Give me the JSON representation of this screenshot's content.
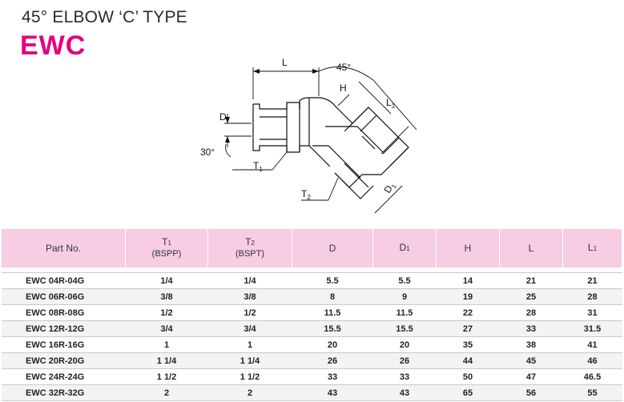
{
  "header": {
    "title": "45° ELBOW ‘C’ TYPE",
    "code": "EWC"
  },
  "drawing": {
    "labels": {
      "L": "L",
      "angle": "45°",
      "H": "H",
      "L1": "L",
      "L1_sub": "1",
      "D": "D",
      "angle30": "30°",
      "T1": "T",
      "T1_sub": "1",
      "T2": "T",
      "T2_sub": "2",
      "D1": "D",
      "D1_sub": "1"
    }
  },
  "table": {
    "headers": {
      "part_no": "Part No.",
      "t1": "T",
      "t1_sub": "1",
      "t1_note": "(BSPP)",
      "t2": "T",
      "t2_sub": "2",
      "t2_note": "(BSPT)",
      "d": "D",
      "d1": "D",
      "d1_sub": "1",
      "h": "H",
      "l": "L",
      "l1": "L",
      "l1_sub": "1"
    },
    "rows": [
      {
        "part": "EWC 04R-04G",
        "t1": "1/4",
        "t2": "1/4",
        "d": "5.5",
        "d1": "5.5",
        "h": "14",
        "l": "21",
        "l1": "21"
      },
      {
        "part": "EWC 06R-06G",
        "t1": "3/8",
        "t2": "3/8",
        "d": "8",
        "d1": "9",
        "h": "19",
        "l": "25",
        "l1": "28"
      },
      {
        "part": "EWC 08R-08G",
        "t1": "1/2",
        "t2": "1/2",
        "d": "11.5",
        "d1": "11.5",
        "h": "22",
        "l": "28",
        "l1": "31"
      },
      {
        "part": "EWC 12R-12G",
        "t1": "3/4",
        "t2": "3/4",
        "d": "15.5",
        "d1": "15.5",
        "h": "27",
        "l": "33",
        "l1": "31.5"
      },
      {
        "part": "EWC 16R-16G",
        "t1": "1",
        "t2": "1",
        "d": "20",
        "d1": "20",
        "h": "35",
        "l": "38",
        "l1": "41"
      },
      {
        "part": "EWC 20R-20G",
        "t1": "1 1/4",
        "t2": "1 1/4",
        "d": "26",
        "d1": "26",
        "h": "44",
        "l": "45",
        "l1": "46"
      },
      {
        "part": "EWC 24R-24G",
        "t1": "1 1/2",
        "t2": "1 1/2",
        "d": "33",
        "d1": "33",
        "h": "50",
        "l": "47",
        "l1": "46.5"
      },
      {
        "part": "EWC 32R-32G",
        "t1": "2",
        "t2": "2",
        "d": "43",
        "d1": "43",
        "h": "65",
        "l": "56",
        "l1": "55"
      }
    ]
  }
}
